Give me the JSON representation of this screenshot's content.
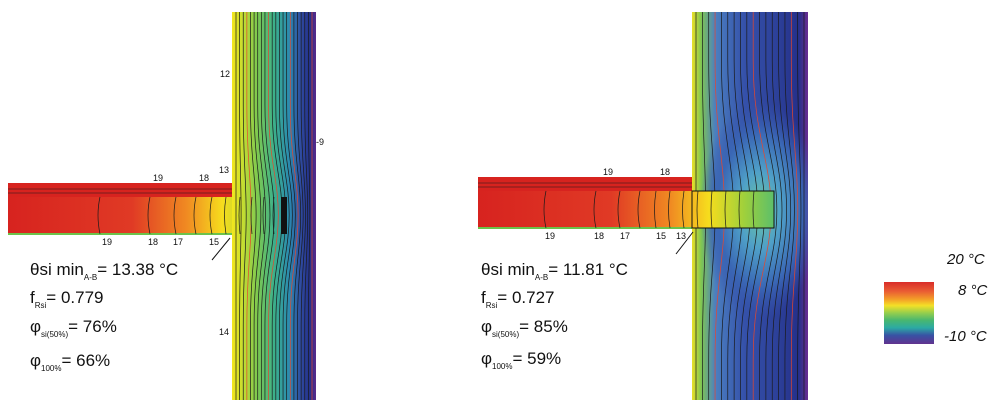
{
  "colors": {
    "warm": "#d7231f",
    "hot": "#e4322a",
    "orange": "#f39a1e",
    "yellow": "#f6e21b",
    "green": "#6cc24a",
    "teal": "#22a6a0",
    "blue": "#2f4aa0",
    "navy": "#1d2b7a",
    "purple": "#5a2a8a",
    "contour": "#1a1a1a",
    "isotherm_red": "#e8472b"
  },
  "panels": [
    {
      "isotherms": {
        "wall_top": "12",
        "wall_right": "-9",
        "corner": "13",
        "slab_top": [
          "19",
          "18"
        ],
        "slab_bottom": [
          "19",
          "18",
          "17",
          "15"
        ],
        "wall_bottom": "14"
      },
      "results": {
        "theta_prefix": "θ",
        "theta_label": "si min",
        "theta_sub": "A-B",
        "theta_value": "= 13.38 °C",
        "f_label": "f",
        "f_sub": "Rsi",
        "f_value": "= 0.779",
        "phi50_label": "φ",
        "phi50_sub": "si(50%)",
        "phi50_value": "= 76%",
        "phi100_label": "φ",
        "phi100_sub": "100%",
        "phi100_value": "= 66%"
      }
    },
    {
      "isotherms": {
        "slab_top": [
          "19",
          "18"
        ],
        "slab_bottom": [
          "19",
          "18",
          "17",
          "15",
          "13"
        ]
      },
      "results": {
        "theta_prefix": "θ",
        "theta_label": "si min",
        "theta_sub": "A-B",
        "theta_value": "= 11.81 °C",
        "f_label": "f",
        "f_sub": "Rsi",
        "f_value": "= 0.727",
        "phi50_label": "φ",
        "phi50_sub": "si(50%)",
        "phi50_value": "= 85%",
        "phi100_label": "φ",
        "phi100_sub": "100%",
        "phi100_value": "= 59%"
      }
    }
  ],
  "legend": {
    "max_label": "20 °C",
    "mid_label": "8 °C",
    "min_label": "-10 °C"
  }
}
